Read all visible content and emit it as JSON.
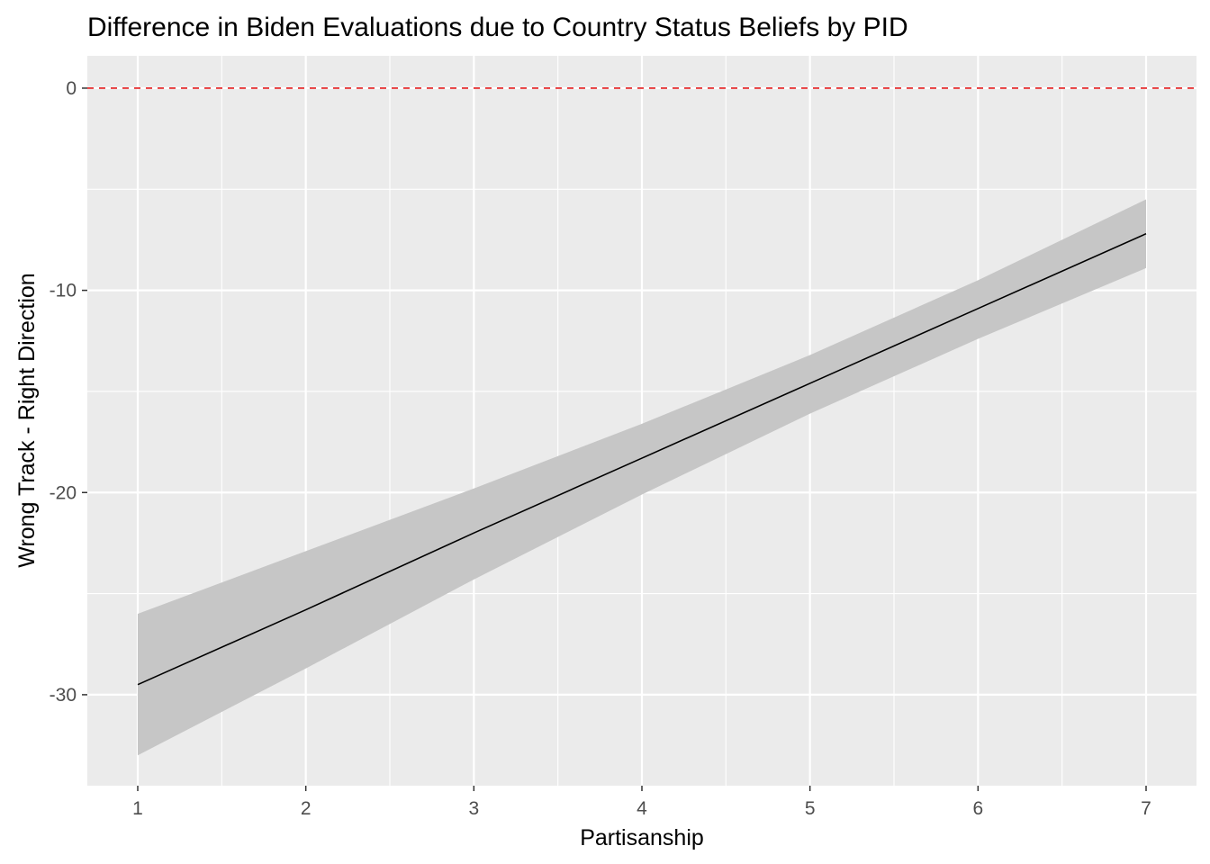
{
  "chart_data": {
    "type": "line",
    "title": "Difference in Biden Evaluations due to Country Status Beliefs by PID",
    "xlabel": "Partisanship",
    "ylabel": "Wrong Track - Right Direction",
    "x": [
      1,
      2,
      3,
      4,
      5,
      6,
      7
    ],
    "series": [
      {
        "values": [
          -29.5,
          -25.8,
          -22.0,
          -18.3,
          -14.6,
          -10.9,
          -7.2
        ],
        "ci_lower": [
          -33.0,
          -28.7,
          -24.3,
          -20.1,
          -16.1,
          -12.4,
          -8.9
        ],
        "ci_upper": [
          -26.0,
          -22.9,
          -19.8,
          -16.6,
          -13.2,
          -9.5,
          -5.5
        ],
        "line_color": "#000000",
        "ribbon_color": "#c6c6c6"
      }
    ],
    "reference_line": {
      "y": 0,
      "color": "#e31a1c",
      "style": "dashed"
    },
    "xlim": [
      0.7,
      7.3
    ],
    "ylim": [
      -34.5,
      1.6
    ],
    "x_ticks": [
      "1",
      "2",
      "3",
      "4",
      "5",
      "6",
      "7"
    ],
    "y_ticks": [
      "0",
      "-10",
      "-20",
      "-30"
    ],
    "y_tick_values": [
      0,
      -10,
      -20,
      -30
    ],
    "y_minor_values": [
      -5,
      -15,
      -25
    ],
    "x_minor_values": [
      1.5,
      2.5,
      3.5,
      4.5,
      5.5,
      6.5
    ],
    "panel_background": "#ebebeb",
    "grid": true,
    "legend": "none"
  }
}
